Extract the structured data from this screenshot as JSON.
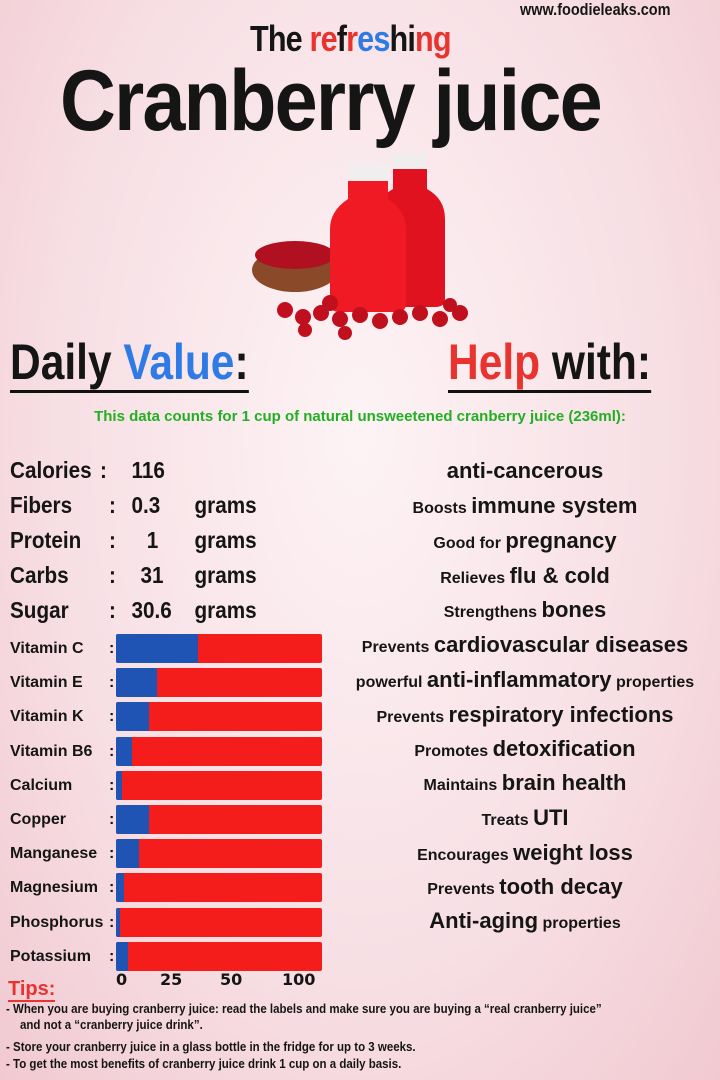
{
  "site": "www.foodieleaks.com",
  "subtitle_parts": [
    {
      "text": "The ",
      "color": "black"
    },
    {
      "text": "re",
      "color": "red"
    },
    {
      "text": "f",
      "color": "black"
    },
    {
      "text": "r",
      "color": "red"
    },
    {
      "text": "es",
      "color": "blue"
    },
    {
      "text": "hi",
      "color": "black"
    },
    {
      "text": "ng",
      "color": "red"
    }
  ],
  "title": "Cranberry juice",
  "daily_value": {
    "word1": "Daily ",
    "word2": "Value",
    "suffix": ":"
  },
  "help_with": {
    "word1": "Help",
    "word2": " with:"
  },
  "note": "This data counts for 1 cup of natural unsweetened cranberry juice (236ml):",
  "nutrients": [
    {
      "name": "Calories",
      "value": "116",
      "unit": ""
    },
    {
      "name": "Fibers",
      "value": "0.3",
      "unit": "grams"
    },
    {
      "name": "Protein",
      "value": "1",
      "unit": "grams"
    },
    {
      "name": "Carbs",
      "value": "31",
      "unit": "grams"
    },
    {
      "name": "Sugar",
      "value": "30.6",
      "unit": "grams"
    }
  ],
  "help_items": [
    {
      "small": "",
      "big": "anti-cancerous",
      "after": ""
    },
    {
      "small": "Boosts ",
      "big": "immune system",
      "after": ""
    },
    {
      "small": "Good for ",
      "big": "pregnancy",
      "after": ""
    },
    {
      "small": "Relieves ",
      "big": "flu & cold",
      "after": ""
    },
    {
      "small": "Strengthens ",
      "big": "bones",
      "after": ""
    },
    {
      "small": "Prevents ",
      "big": "cardiovascular diseases",
      "after": ""
    },
    {
      "small": "powerful ",
      "big": "anti-inflammatory",
      "after": " properties"
    },
    {
      "small": "Prevents ",
      "big": "respiratory infections",
      "after": ""
    },
    {
      "small": "Promotes ",
      "big": "detoxification",
      "after": ""
    },
    {
      "small": "Maintains ",
      "big": "brain health",
      "after": ""
    },
    {
      "small": "Treats ",
      "big": "UTI",
      "after": ""
    },
    {
      "small": "Encourages ",
      "big": "weight loss",
      "after": ""
    },
    {
      "small": "Prevents ",
      "big": "tooth decay",
      "after": ""
    },
    {
      "small": "",
      "big": "Anti-aging",
      "after": " properties"
    }
  ],
  "chart_data": {
    "type": "bar",
    "orientation": "horizontal",
    "categories": [
      "Vitamin C",
      "Vitamin E",
      "Vitamin K",
      "Vitamin B6",
      "Calcium",
      "Copper",
      "Manganese",
      "Magnesium",
      "Phosphorus",
      "Potassium"
    ],
    "values": [
      40,
      20,
      16,
      8,
      3,
      16,
      11,
      4,
      2,
      6
    ],
    "xlim": [
      0,
      100
    ],
    "x_tick_labels": [
      "0",
      "25",
      "50",
      "100"
    ],
    "colors": {
      "value": "#1f54b4",
      "remainder": "#f51c1c"
    }
  },
  "tips": {
    "heading": "Tips:",
    "items": [
      "- When you are buying cranberry juice: read the labels and make sure you are buying a  “real cranberry juice”",
      "and not a “cranberry juice drink”.",
      "- Store your cranberry juice in a glass bottle in the fridge for up to 3 weeks.",
      "- To get the most benefits of cranberry juice drink  1 cup on a daily basis."
    ]
  }
}
